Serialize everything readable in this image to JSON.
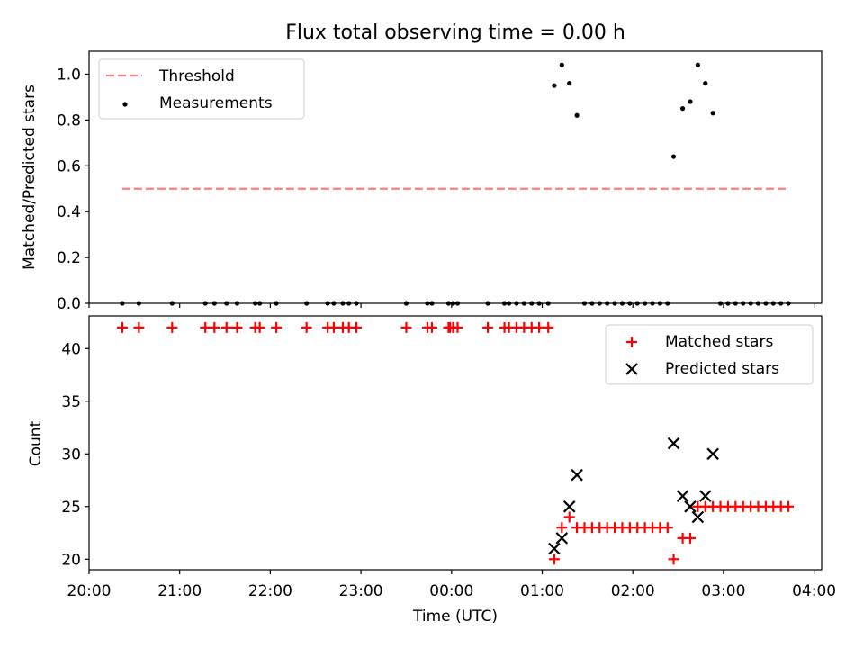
{
  "chart_data": [
    {
      "type": "scatter",
      "title": "Flux total observing time = 0.00 h",
      "xlabel": "",
      "ylabel": "Matched/Predicted stars",
      "x_unit": "time (UTC)",
      "xlim": [
        "20:00",
        "04:05"
      ],
      "ylim": [
        0,
        1.1
      ],
      "yticks": [
        "0.0",
        "0.2",
        "0.4",
        "0.6",
        "0.8",
        "1.0"
      ],
      "grid": false,
      "legend_position": "top-left",
      "series": [
        {
          "name": "Threshold",
          "style": "dashed-line",
          "color": "#ff7f7f",
          "points": [
            [
              "20:22",
              0.5
            ],
            [
              "03:42",
              0.5
            ]
          ]
        },
        {
          "name": "Measurements",
          "style": "dot",
          "color": "#000000",
          "points": [
            [
              "20:22",
              0
            ],
            [
              "20:33",
              0
            ],
            [
              "20:55",
              0
            ],
            [
              "21:17",
              0
            ],
            [
              "21:23",
              0
            ],
            [
              "21:31",
              0
            ],
            [
              "21:38",
              0
            ],
            [
              "21:50",
              0
            ],
            [
              "21:53",
              0
            ],
            [
              "22:04",
              0
            ],
            [
              "22:24",
              0
            ],
            [
              "22:38",
              0
            ],
            [
              "22:42",
              0
            ],
            [
              "22:48",
              0
            ],
            [
              "22:52",
              0
            ],
            [
              "22:57",
              0
            ],
            [
              "23:30",
              0
            ],
            [
              "23:44",
              0
            ],
            [
              "23:47",
              0
            ],
            [
              "23:58",
              0
            ],
            [
              "00:01",
              0
            ],
            [
              "00:04",
              0
            ],
            [
              "00:24",
              0
            ],
            [
              "00:35",
              0
            ],
            [
              "00:38",
              0
            ],
            [
              "00:43",
              0
            ],
            [
              "00:48",
              0
            ],
            [
              "00:53",
              0
            ],
            [
              "00:58",
              0
            ],
            [
              "01:04",
              0
            ],
            [
              "01:08",
              0.95
            ],
            [
              "01:13",
              1.04
            ],
            [
              "01:18",
              0.96
            ],
            [
              "01:23",
              0.82
            ],
            [
              "01:28",
              0
            ],
            [
              "01:33",
              0
            ],
            [
              "01:38",
              0
            ],
            [
              "01:43",
              0
            ],
            [
              "01:48",
              0
            ],
            [
              "01:53",
              0
            ],
            [
              "01:58",
              0
            ],
            [
              "02:03",
              0
            ],
            [
              "02:08",
              0
            ],
            [
              "02:13",
              0
            ],
            [
              "02:18",
              0
            ],
            [
              "02:23",
              0
            ],
            [
              "02:27",
              0.64
            ],
            [
              "02:33",
              0.85
            ],
            [
              "02:38",
              0.88
            ],
            [
              "02:43",
              1.04
            ],
            [
              "02:48",
              0.96
            ],
            [
              "02:53",
              0.83
            ],
            [
              "02:58",
              0
            ],
            [
              "03:03",
              0
            ],
            [
              "03:08",
              0
            ],
            [
              "03:13",
              0
            ],
            [
              "03:18",
              0
            ],
            [
              "03:23",
              0
            ],
            [
              "03:28",
              0
            ],
            [
              "03:33",
              0
            ],
            [
              "03:38",
              0
            ],
            [
              "03:43",
              0
            ]
          ]
        }
      ]
    },
    {
      "type": "scatter",
      "title": "",
      "xlabel": "Time (UTC)",
      "ylabel": "Count",
      "xlim": [
        "20:00",
        "04:05"
      ],
      "ylim": [
        19,
        43.1
      ],
      "xticks": [
        "20:00",
        "21:00",
        "22:00",
        "23:00",
        "00:00",
        "01:00",
        "02:00",
        "03:00",
        "04:00"
      ],
      "yticks": [
        "20",
        "25",
        "30",
        "35",
        "40"
      ],
      "grid": false,
      "legend_position": "top-right",
      "series": [
        {
          "name": "Matched stars",
          "marker": "plus",
          "color": "#ff0000",
          "points": [
            [
              "20:22",
              42
            ],
            [
              "20:33",
              42
            ],
            [
              "20:55",
              42
            ],
            [
              "21:17",
              42
            ],
            [
              "21:23",
              42
            ],
            [
              "21:31",
              42
            ],
            [
              "21:38",
              42
            ],
            [
              "21:50",
              42
            ],
            [
              "21:53",
              42
            ],
            [
              "22:04",
              42
            ],
            [
              "22:24",
              42
            ],
            [
              "22:38",
              42
            ],
            [
              "22:42",
              42
            ],
            [
              "22:48",
              42
            ],
            [
              "22:52",
              42
            ],
            [
              "22:57",
              42
            ],
            [
              "23:30",
              42
            ],
            [
              "23:44",
              42
            ],
            [
              "23:47",
              42
            ],
            [
              "23:58",
              42
            ],
            [
              "23:59",
              42
            ],
            [
              "00:01",
              42
            ],
            [
              "00:04",
              42
            ],
            [
              "00:24",
              42
            ],
            [
              "00:35",
              42
            ],
            [
              "00:38",
              42
            ],
            [
              "00:43",
              42
            ],
            [
              "00:48",
              42
            ],
            [
              "00:53",
              42
            ],
            [
              "00:58",
              42
            ],
            [
              "01:04",
              42
            ],
            [
              "01:08",
              20
            ],
            [
              "01:13",
              23
            ],
            [
              "01:18",
              24
            ],
            [
              "01:23",
              23
            ],
            [
              "01:28",
              23
            ],
            [
              "01:33",
              23
            ],
            [
              "01:38",
              23
            ],
            [
              "01:43",
              23
            ],
            [
              "01:48",
              23
            ],
            [
              "01:53",
              23
            ],
            [
              "01:58",
              23
            ],
            [
              "02:03",
              23
            ],
            [
              "02:08",
              23
            ],
            [
              "02:13",
              23
            ],
            [
              "02:18",
              23
            ],
            [
              "02:23",
              23
            ],
            [
              "02:27",
              20
            ],
            [
              "02:33",
              22
            ],
            [
              "02:38",
              22
            ],
            [
              "02:43",
              25
            ],
            [
              "02:48",
              25
            ],
            [
              "02:53",
              25
            ],
            [
              "02:58",
              25
            ],
            [
              "03:03",
              25
            ],
            [
              "03:08",
              25
            ],
            [
              "03:13",
              25
            ],
            [
              "03:18",
              25
            ],
            [
              "03:23",
              25
            ],
            [
              "03:28",
              25
            ],
            [
              "03:33",
              25
            ],
            [
              "03:38",
              25
            ],
            [
              "03:43",
              25
            ]
          ]
        },
        {
          "name": "Predicted stars",
          "marker": "x",
          "color": "#000000",
          "points": [
            [
              "01:08",
              21
            ],
            [
              "01:13",
              22
            ],
            [
              "01:18",
              25
            ],
            [
              "01:23",
              28
            ],
            [
              "02:27",
              31
            ],
            [
              "02:33",
              26
            ],
            [
              "02:38",
              25
            ],
            [
              "02:43",
              24
            ],
            [
              "02:48",
              26
            ],
            [
              "02:53",
              30
            ]
          ]
        }
      ]
    }
  ]
}
